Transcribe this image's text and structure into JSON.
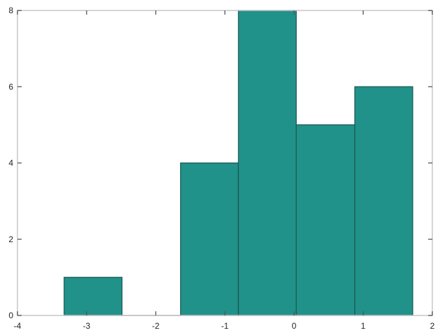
{
  "chart_data": {
    "type": "bar",
    "subtype": "histogram",
    "bin_edges": [
      -3.325,
      -2.488,
      -1.641,
      -0.804,
      0.032,
      0.879,
      1.716
    ],
    "values": [
      1,
      0,
      4,
      8,
      5,
      6
    ],
    "title": "",
    "xlabel": "",
    "ylabel": "",
    "xlim": [
      -4,
      2
    ],
    "ylim": [
      0,
      8
    ],
    "xticks": [
      -4,
      -3,
      -2,
      -1,
      0,
      1,
      2
    ],
    "yticks": [
      0,
      2,
      4,
      6,
      8
    ],
    "grid": false,
    "colors": {
      "bar_fill": "#20928A",
      "bar_edge": "#1B5A56",
      "axis_box": "#C8C8C8",
      "tick": "#555555"
    }
  }
}
